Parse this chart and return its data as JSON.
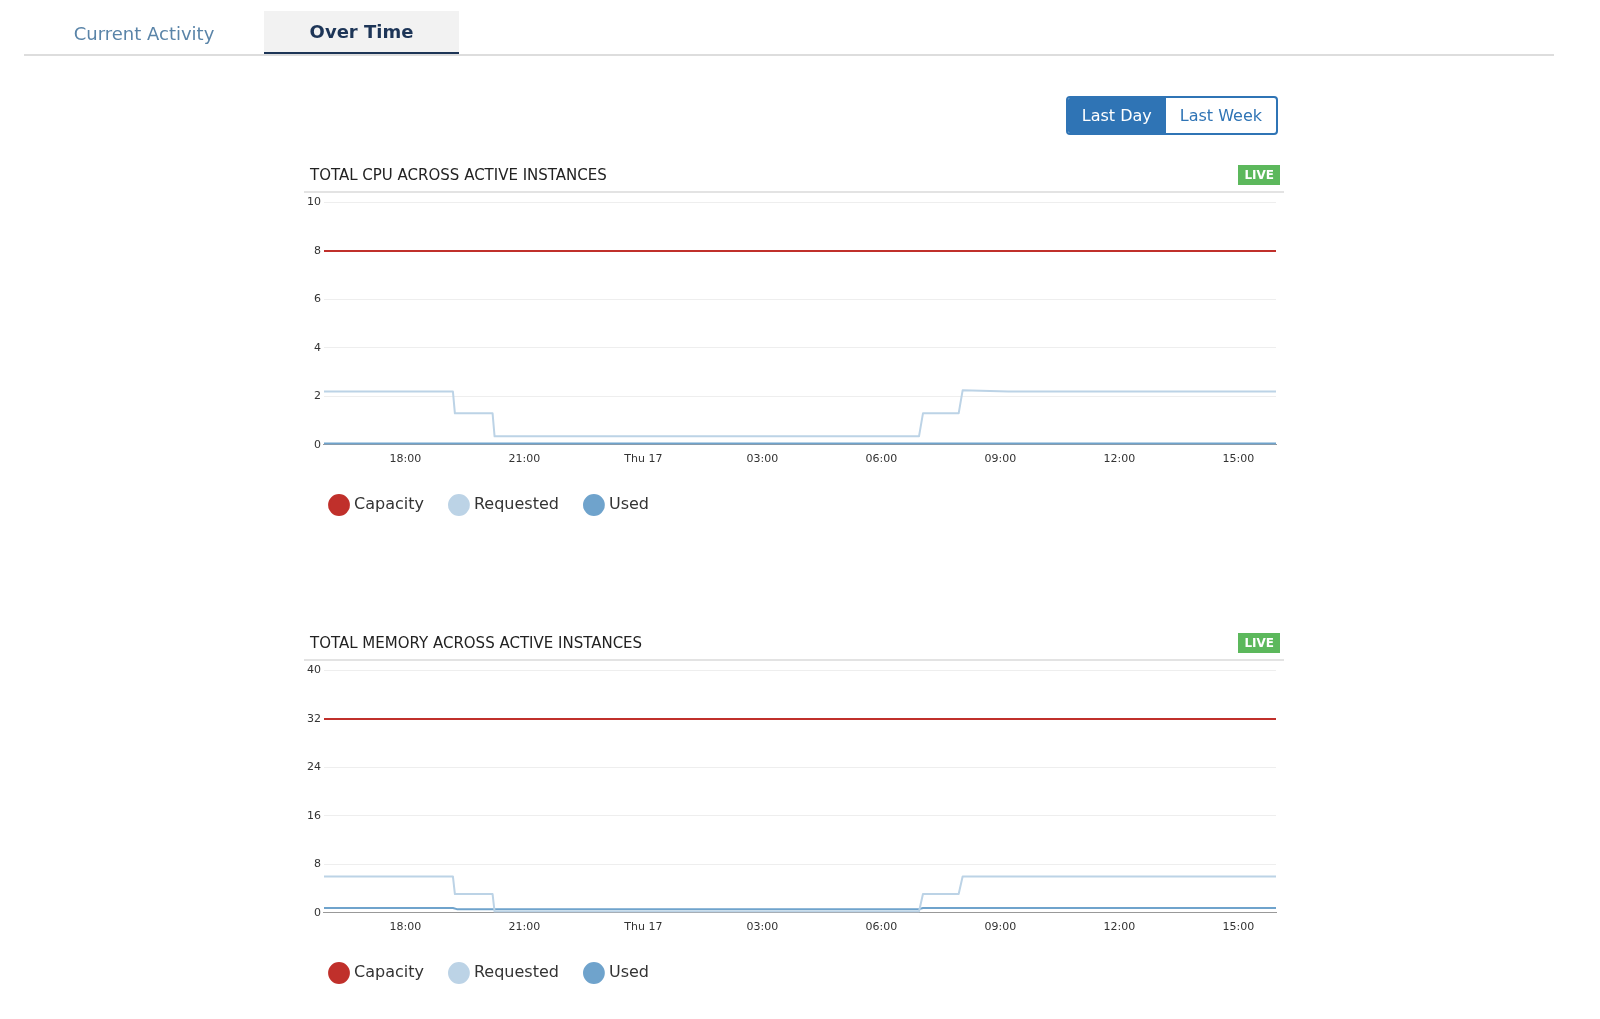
{
  "chart_data": [
    {
      "type": "line",
      "title": "TOTAL CPU ACROSS ACTIVE INSTANCES",
      "annotations": [
        "Current Activity",
        "Over Time",
        "Last Day",
        "Last Week",
        "LIVE"
      ],
      "xlim": [
        "--01-16T15:57",
        "--01-17T15:57"
      ],
      "xticks": [
        {
          "value": "--01-16T18:00",
          "label": "18:00"
        },
        {
          "value": "--01-16T21:00",
          "label": "21:00"
        },
        {
          "value": "--01-17T00:00",
          "label": "Thu 17"
        },
        {
          "value": "--01-17T03:00",
          "label": "03:00"
        },
        {
          "value": "--01-17T06:00",
          "label": "06:00"
        },
        {
          "value": "--01-17T09:00",
          "label": "09:00"
        },
        {
          "value": "--01-17T12:00",
          "label": "12:00"
        },
        {
          "value": "--01-17T15:00",
          "label": "15:00"
        }
      ],
      "ylim": [
        0,
        10
      ],
      "yticks": [
        0,
        2,
        4,
        6,
        8,
        10
      ],
      "grid": "y",
      "legend": "bottom left",
      "series": [
        {
          "name": "Capacity",
          "color": "#c0302b",
          "x": [
            "--01-16T15:57",
            "--01-17T15:57"
          ],
          "values": [
            8,
            8
          ]
        },
        {
          "name": "Requested",
          "color": "#bcd3e6",
          "x": [
            "--01-16T15:57",
            "--01-16T19:12",
            "--01-16T19:15",
            "--01-16T20:12",
            "--01-16T20:15",
            "--01-17T06:57",
            "--01-17T07:03",
            "--01-17T07:57",
            "--01-17T08:03",
            "--01-17T09:12",
            "--01-17T15:57"
          ],
          "values": [
            2.2,
            2.2,
            1.3,
            1.3,
            0.35,
            0.35,
            1.3,
            1.3,
            2.25,
            2.2,
            2.2
          ]
        },
        {
          "name": "Used",
          "color": "#6fa3cc",
          "x": [
            "--01-16T15:57",
            "--01-17T15:57"
          ],
          "values": [
            0.05,
            0.05
          ]
        }
      ]
    },
    {
      "type": "line",
      "title": "TOTAL MEMORY ACROSS ACTIVE INSTANCES",
      "annotations": [
        "LIVE"
      ],
      "xlim": [
        "--01-16T15:57",
        "--01-17T15:57"
      ],
      "xticks": [
        {
          "value": "--01-16T18:00",
          "label": "18:00"
        },
        {
          "value": "--01-16T21:00",
          "label": "21:00"
        },
        {
          "value": "--01-17T00:00",
          "label": "Thu 17"
        },
        {
          "value": "--01-17T03:00",
          "label": "03:00"
        },
        {
          "value": "--01-17T06:00",
          "label": "06:00"
        },
        {
          "value": "--01-17T09:00",
          "label": "09:00"
        },
        {
          "value": "--01-17T12:00",
          "label": "12:00"
        },
        {
          "value": "--01-17T15:00",
          "label": "15:00"
        }
      ],
      "ylim": [
        0,
        40
      ],
      "yticks": [
        0,
        8,
        16,
        24,
        32,
        40
      ],
      "grid": "y",
      "legend": "bottom left",
      "series": [
        {
          "name": "Capacity",
          "color": "#c0302b",
          "x": [
            "--01-16T15:57",
            "--01-17T15:57"
          ],
          "values": [
            32,
            32
          ]
        },
        {
          "name": "Requested",
          "color": "#bcd3e6",
          "x": [
            "--01-16T15:57",
            "--01-16T19:12",
            "--01-16T19:15",
            "--01-16T20:12",
            "--01-16T20:15",
            "--01-17T06:57",
            "--01-17T07:03",
            "--01-17T07:57",
            "--01-17T08:03",
            "--01-17T15:57"
          ],
          "values": [
            6,
            6,
            3.1,
            3.1,
            0.2,
            0.2,
            3.1,
            3.1,
            6,
            6
          ]
        },
        {
          "name": "Used",
          "color": "#6fa3cc",
          "x": [
            "--01-16T15:57",
            "--01-16T19:12",
            "--01-16T19:18",
            "--01-17T06:57",
            "--01-17T07:03",
            "--01-17T15:57"
          ],
          "values": [
            0.8,
            0.8,
            0.6,
            0.6,
            0.8,
            0.8
          ]
        }
      ]
    }
  ]
}
